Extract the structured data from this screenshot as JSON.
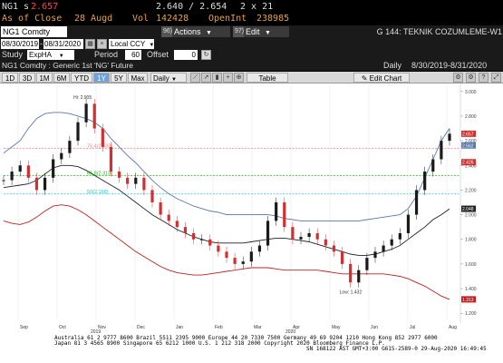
{
  "header": {
    "ticker_short": "NG1",
    "price_prefix": "s",
    "price": "2.657",
    "bid_ask": "2.640 / 2.654",
    "size": "2 x 21",
    "as_of_label": "As of Close",
    "as_of_date": "28 Augd",
    "vol_label": "Vol",
    "vol_value": "142428",
    "openint_label": "OpenInt",
    "openint_value": "238985"
  },
  "command": {
    "ticker": "NG1 Comdty",
    "actions_num": "96)",
    "actions_label": "Actions",
    "edit_num": "97)",
    "edit_label": "Edit",
    "title": "G 144: TEKNIK COZUMLEME-W1"
  },
  "range": {
    "start_date": "08/30/2019",
    "end_date": "08/31/2020",
    "currency": "Local CCY"
  },
  "study": {
    "study_label": "Study",
    "study_value": "ExpHA",
    "period_label": "Period",
    "period_value": "60",
    "offset_label": "Offset",
    "offset_value": "0"
  },
  "security": {
    "description": "NG1 Comdty : Generic 1st 'NG' Future",
    "frequency": "Daily",
    "date_range": "8/30/2019-8/31/2020"
  },
  "toolbar": {
    "periods": [
      "1D",
      "3D",
      "1M",
      "6M",
      "YTD",
      "1Y",
      "5Y",
      "Max"
    ],
    "active_period": "1Y",
    "freq_select": "Daily",
    "table_label": "Table",
    "edit_chart_label": "Edit Chart"
  },
  "colors": {
    "upper_band": "#5a78a8",
    "lower_band": "#c02020",
    "midline": "#222222",
    "fib_red": "#ff8080",
    "fib_green": "#20c020",
    "fib_cyan": "#20c8e0",
    "up_candle": "#1a1a1a",
    "down_candle": "#d03030"
  },
  "chart_data": {
    "type": "line",
    "title": "",
    "annotations": [
      "Hi: 2.905",
      "Low: 1.432"
    ],
    "fib_levels": [
      {
        "label": "76.4(2.539)",
        "value": 2.539
      },
      {
        "label": "61.8(2.318)",
        "value": 2.318
      },
      {
        "label": "50(2.168)",
        "value": 2.168
      }
    ],
    "right_labels": [
      "2.657",
      "2.562",
      "2.426",
      "2.048",
      "1.313"
    ],
    "yticks": [
      "3.000",
      "2.800",
      "2.600",
      "2.400",
      "2.200",
      "2.000",
      "1.800",
      "1.600",
      "1.400",
      "1.200"
    ],
    "ylim": [
      1.15,
      3.05
    ],
    "xticks": [
      "Sep",
      "Oct",
      "Nov",
      "Dec",
      "Jan",
      "Feb",
      "Mar",
      "Apr",
      "May",
      "Jun",
      "Jul",
      "Aug"
    ],
    "year_labels": [
      "2019",
      "2020"
    ],
    "series": [
      {
        "name": "Price",
        "values": [
          2.28,
          2.35,
          2.4,
          2.3,
          2.2,
          2.3,
          2.45,
          2.5,
          2.6,
          2.75,
          2.9,
          2.7,
          2.55,
          2.35,
          2.3,
          2.25,
          2.3,
          2.2,
          2.1,
          2.0,
          1.95,
          1.9,
          1.85,
          1.8,
          1.8,
          1.75,
          1.7,
          1.65,
          1.6,
          1.62,
          1.7,
          1.75,
          1.95,
          2.1,
          1.9,
          1.8,
          1.82,
          1.85,
          1.8,
          1.75,
          1.7,
          1.6,
          1.45,
          1.55,
          1.65,
          1.7,
          1.75,
          1.8,
          1.85,
          2.0,
          2.2,
          2.35,
          2.45,
          2.6,
          2.657
        ]
      },
      {
        "name": "Upper",
        "values": [
          2.5,
          2.55,
          2.6,
          2.7,
          2.78,
          2.82,
          2.83,
          2.83,
          2.82,
          2.8,
          2.78,
          2.75,
          2.7,
          2.62,
          2.55,
          2.48,
          2.42,
          2.35,
          2.28,
          2.22,
          2.17,
          2.13,
          2.1,
          2.07,
          2.05,
          2.03,
          2.02,
          2.0,
          2.0,
          2.0,
          2.0,
          2.0,
          2.0,
          1.99,
          1.97,
          1.96,
          1.95,
          1.95,
          1.95,
          1.95,
          1.95,
          1.95,
          1.95,
          1.95,
          1.96,
          1.97,
          1.98,
          1.99,
          2.0,
          2.05,
          2.15,
          2.3,
          2.45,
          2.6,
          2.7
        ]
      },
      {
        "name": "Mid",
        "values": [
          2.22,
          2.23,
          2.24,
          2.25,
          2.28,
          2.33,
          2.38,
          2.4,
          2.4,
          2.39,
          2.36,
          2.32,
          2.28,
          2.24,
          2.2,
          2.15,
          2.1,
          2.05,
          2.0,
          1.96,
          1.92,
          1.88,
          1.85,
          1.82,
          1.8,
          1.78,
          1.77,
          1.77,
          1.77,
          1.77,
          1.78,
          1.79,
          1.8,
          1.81,
          1.81,
          1.8,
          1.79,
          1.78,
          1.76,
          1.74,
          1.72,
          1.7,
          1.68,
          1.67,
          1.67,
          1.68,
          1.7,
          1.72,
          1.75,
          1.8,
          1.85,
          1.9,
          1.96,
          2.0,
          2.048
        ]
      },
      {
        "name": "Lower",
        "values": [
          1.95,
          1.93,
          1.92,
          1.94,
          1.98,
          2.03,
          2.07,
          2.08,
          2.07,
          2.04,
          2.0,
          1.95,
          1.9,
          1.85,
          1.8,
          1.75,
          1.7,
          1.66,
          1.62,
          1.58,
          1.55,
          1.53,
          1.52,
          1.51,
          1.51,
          1.52,
          1.53,
          1.54,
          1.55,
          1.56,
          1.57,
          1.57,
          1.57,
          1.56,
          1.55,
          1.55,
          1.55,
          1.55,
          1.55,
          1.54,
          1.53,
          1.52,
          1.52,
          1.52,
          1.52,
          1.52,
          1.52,
          1.51,
          1.5,
          1.48,
          1.45,
          1.42,
          1.38,
          1.34,
          1.313
        ]
      }
    ]
  },
  "footer": {
    "line1": "Australia 61 2 9777 8600 Brazil 5511 2395 9000 Europe 44 20 7330 7500 Germany 49 69 9204 1210 Hong Kong 852 2977 6000",
    "line2": "Japan 81 3 4565 8900        Singapore 65 6212 1000      U.S. 1 212 318 2000        Copyright 2020 Bloomberg Finance L.P.",
    "line3": "SN 168122 AST  GMT+3:00 G615-2589-0 29-Aug-2020 16:49:45"
  }
}
